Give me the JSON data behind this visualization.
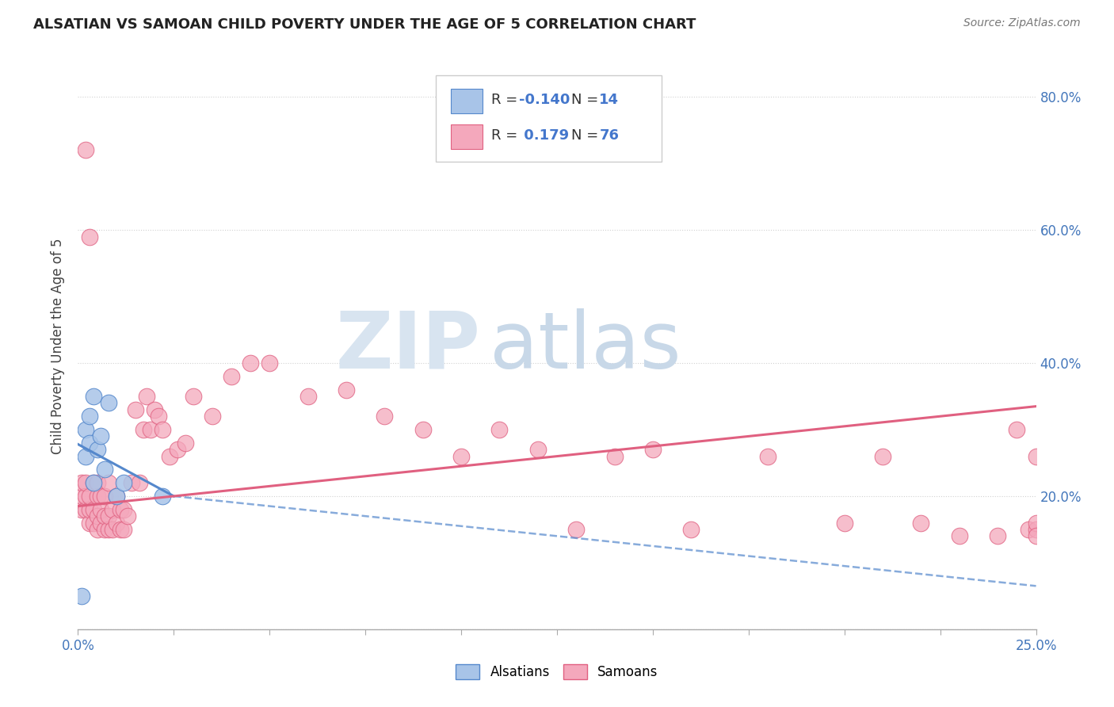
{
  "title": "ALSATIAN VS SAMOAN CHILD POVERTY UNDER THE AGE OF 5 CORRELATION CHART",
  "source": "Source: ZipAtlas.com",
  "ylabel": "Child Poverty Under the Age of 5",
  "alsatian_R": -0.14,
  "alsatian_N": 14,
  "samoan_R": 0.179,
  "samoan_N": 76,
  "alsatian_color": "#a8c4e8",
  "samoan_color": "#f4a8bc",
  "alsatian_line_color": "#5588cc",
  "samoan_line_color": "#e06080",
  "watermark_zip": "ZIP",
  "watermark_atlas": "atlas",
  "watermark_color_zip": "#d8e4f0",
  "watermark_color_atlas": "#c8d8e8",
  "xlim": [
    0.0,
    0.25
  ],
  "ylim": [
    0.0,
    0.85
  ],
  "yticks": [
    0.0,
    0.2,
    0.4,
    0.6,
    0.8
  ],
  "right_ytick_labels": [
    "",
    "20.0%",
    "40.0%",
    "60.0%",
    "80.0%"
  ],
  "alsatian_x": [
    0.001,
    0.002,
    0.002,
    0.003,
    0.003,
    0.004,
    0.004,
    0.005,
    0.006,
    0.007,
    0.008,
    0.01,
    0.012,
    0.022
  ],
  "alsatian_y": [
    0.05,
    0.3,
    0.26,
    0.32,
    0.28,
    0.35,
    0.22,
    0.27,
    0.29,
    0.24,
    0.34,
    0.2,
    0.22,
    0.2
  ],
  "samoan_x": [
    0.001,
    0.001,
    0.001,
    0.002,
    0.002,
    0.002,
    0.002,
    0.003,
    0.003,
    0.003,
    0.003,
    0.004,
    0.004,
    0.004,
    0.005,
    0.005,
    0.005,
    0.005,
    0.006,
    0.006,
    0.006,
    0.007,
    0.007,
    0.007,
    0.008,
    0.008,
    0.008,
    0.009,
    0.009,
    0.01,
    0.01,
    0.011,
    0.011,
    0.012,
    0.012,
    0.013,
    0.014,
    0.015,
    0.016,
    0.017,
    0.018,
    0.019,
    0.02,
    0.021,
    0.022,
    0.024,
    0.026,
    0.028,
    0.03,
    0.035,
    0.04,
    0.045,
    0.05,
    0.06,
    0.07,
    0.08,
    0.09,
    0.1,
    0.11,
    0.12,
    0.13,
    0.14,
    0.15,
    0.16,
    0.18,
    0.2,
    0.21,
    0.22,
    0.23,
    0.24,
    0.245,
    0.248,
    0.25,
    0.25,
    0.25,
    0.25
  ],
  "samoan_y": [
    0.18,
    0.2,
    0.22,
    0.18,
    0.2,
    0.22,
    0.72,
    0.16,
    0.18,
    0.2,
    0.59,
    0.16,
    0.18,
    0.22,
    0.15,
    0.17,
    0.2,
    0.22,
    0.16,
    0.18,
    0.2,
    0.15,
    0.17,
    0.2,
    0.15,
    0.17,
    0.22,
    0.15,
    0.18,
    0.16,
    0.2,
    0.15,
    0.18,
    0.15,
    0.18,
    0.17,
    0.22,
    0.33,
    0.22,
    0.3,
    0.35,
    0.3,
    0.33,
    0.32,
    0.3,
    0.26,
    0.27,
    0.28,
    0.35,
    0.32,
    0.38,
    0.4,
    0.4,
    0.35,
    0.36,
    0.32,
    0.3,
    0.26,
    0.3,
    0.27,
    0.15,
    0.26,
    0.27,
    0.15,
    0.26,
    0.16,
    0.26,
    0.16,
    0.14,
    0.14,
    0.3,
    0.15,
    0.15,
    0.16,
    0.26,
    0.14
  ],
  "als_trend_x0": 0.0,
  "als_trend_y0": 0.278,
  "als_trend_x1": 0.025,
  "als_trend_y1": 0.2,
  "als_trend_dash_x0": 0.025,
  "als_trend_dash_y0": 0.2,
  "als_trend_dash_x1": 0.25,
  "als_trend_dash_y1": 0.065,
  "sam_trend_x0": 0.0,
  "sam_trend_y0": 0.185,
  "sam_trend_x1": 0.25,
  "sam_trend_y1": 0.335
}
